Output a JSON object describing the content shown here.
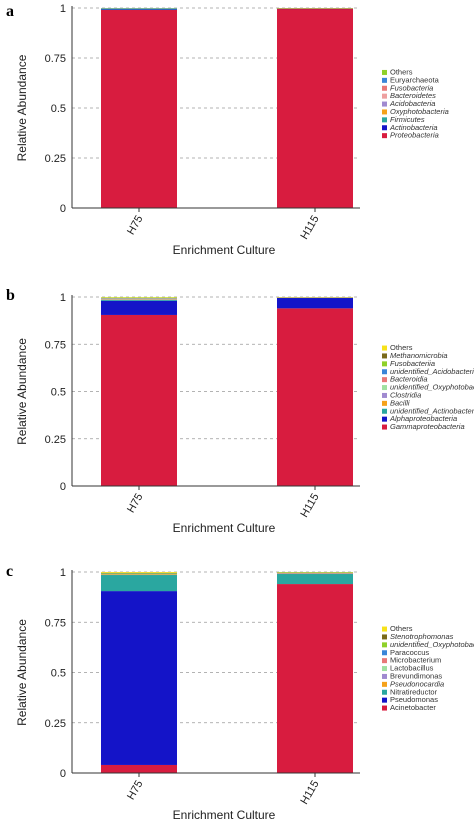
{
  "chart_data": [
    {
      "panel": "a",
      "type": "bar",
      "stacked": true,
      "categories": [
        "H75",
        "H115"
      ],
      "xlabel": "Enrichment Culture",
      "ylabel": "Relative Abundance",
      "ylim": [
        0,
        1
      ],
      "yticks": [
        "0",
        "0.25",
        "0.5",
        "0.75",
        "1"
      ],
      "grid": true,
      "legend_position": "right",
      "series": [
        {
          "name": "Proteobacteria",
          "italic": true,
          "color": "#d81c3f",
          "values": [
            0.99,
            0.995
          ]
        },
        {
          "name": "Actinobacteria",
          "italic": true,
          "color": "#1414c8",
          "values": [
            0.003,
            0.001
          ]
        },
        {
          "name": "Firmicutes",
          "italic": true,
          "color": "#2aa7a0",
          "values": [
            0.004,
            0.001
          ]
        },
        {
          "name": "Oxyphotobacteria",
          "italic": true,
          "color": "#f5a21b",
          "values": [
            0.0,
            0.003
          ]
        },
        {
          "name": "Acidobacteria",
          "italic": true,
          "color": "#a08ad0",
          "values": [
            0.001,
            0.0
          ]
        },
        {
          "name": "Bacteroidetes",
          "italic": true,
          "color": "#eea0a0",
          "values": [
            0.0,
            0.0
          ]
        },
        {
          "name": "Fusobacteria",
          "italic": true,
          "color": "#e87878",
          "values": [
            0.0,
            0.0
          ]
        },
        {
          "name": "Euryarchaeota",
          "italic": false,
          "color": "#3a86d8",
          "values": [
            0.001,
            0.0
          ]
        },
        {
          "name": "Others",
          "italic": false,
          "color": "#8fd12a",
          "values": [
            0.001,
            0.0
          ]
        }
      ]
    },
    {
      "panel": "b",
      "type": "bar",
      "stacked": true,
      "categories": [
        "H75",
        "H115"
      ],
      "xlabel": "Enrichment Culture",
      "ylabel": "Relative Abundance",
      "ylim": [
        0,
        1
      ],
      "yticks": [
        "0",
        "0.25",
        "0.5",
        "0.75",
        "1"
      ],
      "grid": true,
      "legend_position": "right",
      "series": [
        {
          "name": "Gammaproteobacteria",
          "italic": true,
          "color": "#d81c3f",
          "values": [
            0.905,
            0.94
          ]
        },
        {
          "name": "Alphaproteobacteria",
          "italic": true,
          "color": "#1414c8",
          "values": [
            0.075,
            0.055
          ]
        },
        {
          "name": "unidentified_Actinobacteria",
          "italic": true,
          "color": "#2aa7a0",
          "values": [
            0.005,
            0.001
          ]
        },
        {
          "name": "Bacilli",
          "italic": true,
          "color": "#f5a21b",
          "values": [
            0.002,
            0.001
          ]
        },
        {
          "name": "Clostridia",
          "italic": true,
          "color": "#a08ad0",
          "values": [
            0.002,
            0.001
          ]
        },
        {
          "name": "unidentified_Oxyphotobacteria",
          "italic": true,
          "color": "#a0e0a0",
          "values": [
            0.002,
            0.001
          ]
        },
        {
          "name": "Bacteroidia",
          "italic": true,
          "color": "#e87878",
          "values": [
            0.001,
            0.0
          ]
        },
        {
          "name": "unidentified_Acidobacteria",
          "italic": true,
          "color": "#3a86d8",
          "values": [
            0.002,
            0.0
          ]
        },
        {
          "name": "Fusobacteriia",
          "italic": true,
          "color": "#8fd12a",
          "values": [
            0.003,
            0.0
          ]
        },
        {
          "name": "Methanomicrobia",
          "italic": true,
          "color": "#7a6a1a",
          "values": [
            0.0,
            0.0
          ]
        },
        {
          "name": "Others",
          "italic": false,
          "color": "#f7e21a",
          "values": [
            0.002,
            0.001
          ]
        }
      ]
    },
    {
      "panel": "c",
      "type": "bar",
      "stacked": true,
      "categories": [
        "H75",
        "H115"
      ],
      "xlabel": "Enrichment Culture",
      "ylabel": "Relative Abundance",
      "ylim": [
        0,
        1
      ],
      "yticks": [
        "0",
        "0.25",
        "0.5",
        "0.75",
        "1"
      ],
      "grid": true,
      "legend_position": "right",
      "series": [
        {
          "name": "Acinetobacter",
          "italic": false,
          "color": "#d81c3f",
          "values": [
            0.04,
            0.94
          ]
        },
        {
          "name": "Pseudomonas",
          "italic": false,
          "color": "#1414c8",
          "values": [
            0.865,
            0.0
          ]
        },
        {
          "name": "Nitratireductor",
          "italic": false,
          "color": "#2aa7a0",
          "values": [
            0.08,
            0.05
          ]
        },
        {
          "name": "Pseudonocardia",
          "italic": true,
          "color": "#f5a21b",
          "values": [
            0.003,
            0.002
          ]
        },
        {
          "name": "Brevundimonas",
          "italic": false,
          "color": "#a08ad0",
          "values": [
            0.001,
            0.001
          ]
        },
        {
          "name": "Lactobacillus",
          "italic": false,
          "color": "#a0e0a0",
          "values": [
            0.001,
            0.001
          ]
        },
        {
          "name": "Microbacterium",
          "italic": false,
          "color": "#e87878",
          "values": [
            0.001,
            0.001
          ]
        },
        {
          "name": "Paracoccus",
          "italic": false,
          "color": "#3a86d8",
          "values": [
            0.001,
            0.001
          ]
        },
        {
          "name": "unidentified_Oxyphotobacteria",
          "italic": true,
          "color": "#8fd12a",
          "values": [
            0.003,
            0.002
          ]
        },
        {
          "name": "Stenotrophomonas",
          "italic": true,
          "color": "#7a6a1a",
          "values": [
            0.001,
            0.001
          ]
        },
        {
          "name": "Others",
          "italic": false,
          "color": "#f7e21a",
          "values": [
            0.004,
            0.001
          ]
        }
      ]
    }
  ]
}
